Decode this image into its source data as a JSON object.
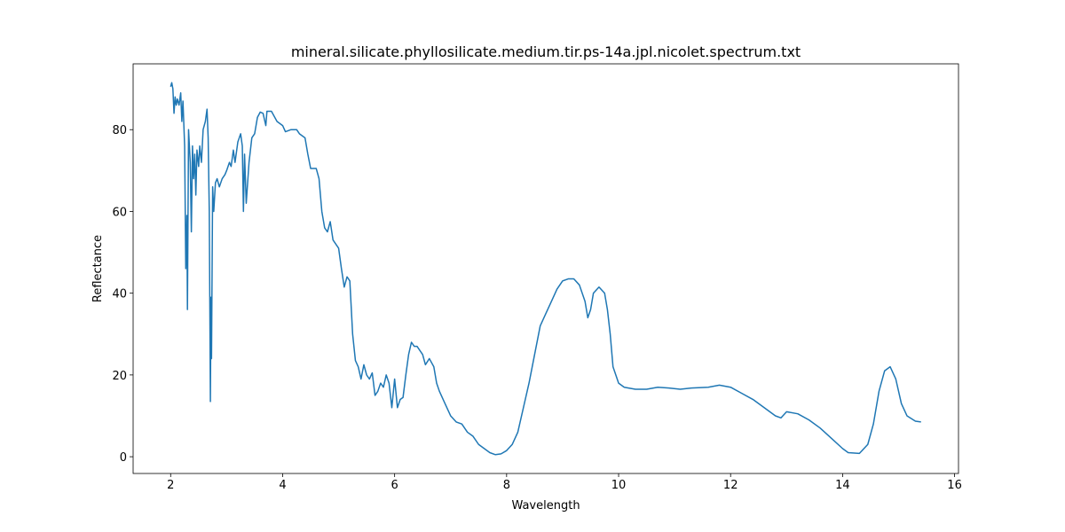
{
  "chart_data": {
    "type": "line",
    "title": "mineral.silicate.phyllosilicate.medium.tir.ps-14a.jpl.nicolet.spectrum.txt",
    "x_label": "Wavelength",
    "y_label": "Reflectance",
    "xlim": [
      1.33,
      16.07
    ],
    "ylim": [
      -4.1,
      96.1
    ],
    "xticks": [
      2,
      4,
      6,
      8,
      10,
      12,
      14,
      16
    ],
    "yticks": [
      0,
      20,
      40,
      60,
      80
    ],
    "grid": false,
    "series": [
      {
        "color": "#1f77b4",
        "x": [
          2.0,
          2.02,
          2.04,
          2.06,
          2.08,
          2.1,
          2.12,
          2.15,
          2.18,
          2.2,
          2.22,
          2.25,
          2.27,
          2.29,
          2.3,
          2.32,
          2.35,
          2.37,
          2.39,
          2.41,
          2.43,
          2.45,
          2.47,
          2.5,
          2.52,
          2.55,
          2.58,
          2.62,
          2.65,
          2.67,
          2.69,
          2.71,
          2.72,
          2.73,
          2.75,
          2.77,
          2.8,
          2.83,
          2.87,
          2.92,
          2.97,
          3.0,
          3.05,
          3.08,
          3.12,
          3.15,
          3.2,
          3.25,
          3.28,
          3.3,
          3.32,
          3.35,
          3.4,
          3.45,
          3.5,
          3.55,
          3.6,
          3.65,
          3.7,
          3.72,
          3.8,
          3.9,
          4.0,
          4.05,
          4.15,
          4.25,
          4.3,
          4.4,
          4.45,
          4.5,
          4.6,
          4.65,
          4.7,
          4.75,
          4.8,
          4.85,
          4.9,
          5.0,
          5.05,
          5.1,
          5.15,
          5.2,
          5.25,
          5.3,
          5.35,
          5.4,
          5.45,
          5.5,
          5.55,
          5.6,
          5.65,
          5.7,
          5.75,
          5.8,
          5.85,
          5.9,
          5.95,
          6.0,
          6.05,
          6.1,
          6.15,
          6.2,
          6.25,
          6.3,
          6.35,
          6.4,
          6.5,
          6.55,
          6.62,
          6.7,
          6.75,
          6.8,
          6.9,
          7.0,
          7.1,
          7.2,
          7.3,
          7.4,
          7.5,
          7.6,
          7.7,
          7.8,
          7.9,
          8.0,
          8.1,
          8.2,
          8.3,
          8.4,
          8.5,
          8.6,
          8.7,
          8.8,
          8.9,
          9.0,
          9.1,
          9.2,
          9.3,
          9.4,
          9.45,
          9.5,
          9.55,
          9.65,
          9.75,
          9.8,
          9.85,
          9.9,
          10.0,
          10.1,
          10.3,
          10.5,
          10.7,
          10.9,
          11.1,
          11.3,
          11.6,
          11.8,
          12.0,
          12.2,
          12.4,
          12.6,
          12.8,
          12.9,
          13.0,
          13.2,
          13.4,
          13.6,
          13.8,
          14.0,
          14.1,
          14.3,
          14.45,
          14.55,
          14.65,
          14.75,
          14.85,
          14.95,
          15.05,
          15.15,
          15.3,
          15.4
        ],
        "values": [
          90.5,
          91.5,
          90,
          84,
          88,
          86,
          87.5,
          86,
          89,
          82,
          87,
          76,
          46,
          59,
          36,
          80,
          72,
          55,
          76,
          68,
          74,
          64,
          75,
          71,
          76,
          72,
          80,
          82,
          85,
          78,
          60,
          13.5,
          39,
          24,
          66,
          60,
          67,
          68,
          66,
          68,
          69,
          70,
          72,
          71,
          75,
          72,
          77,
          79,
          76,
          60,
          74,
          62,
          72,
          78,
          79,
          83,
          84.3,
          84,
          81,
          84.5,
          84.5,
          82,
          81,
          79.5,
          80,
          80,
          79,
          78,
          74,
          70.5,
          70.5,
          68,
          60,
          56,
          55,
          57.5,
          53,
          51,
          46,
          41.5,
          44,
          43,
          30,
          23.5,
          22,
          19,
          22.5,
          20,
          19,
          20.5,
          15,
          16,
          18,
          17,
          20,
          18,
          12,
          19,
          12,
          14,
          14.5,
          20,
          25,
          28,
          27,
          27,
          25,
          22.5,
          24,
          22,
          18,
          16,
          13,
          10,
          8.5,
          8,
          6,
          5,
          3,
          2,
          1,
          0.5,
          0.7,
          1.5,
          3,
          6,
          12,
          18,
          25,
          32,
          35,
          38,
          41,
          43,
          43.5,
          43.5,
          42,
          38,
          34,
          36,
          40,
          41.5,
          40,
          36,
          30,
          22,
          18,
          17,
          16.5,
          16.5,
          17,
          16.8,
          16.5,
          16.8,
          17,
          17.5,
          17,
          15.5,
          14,
          12,
          10,
          9.5,
          11,
          10.5,
          9,
          7,
          4.5,
          2,
          1,
          0.8,
          3,
          8,
          16,
          21,
          22,
          19,
          13,
          10,
          8.7,
          8.5
        ]
      }
    ]
  }
}
